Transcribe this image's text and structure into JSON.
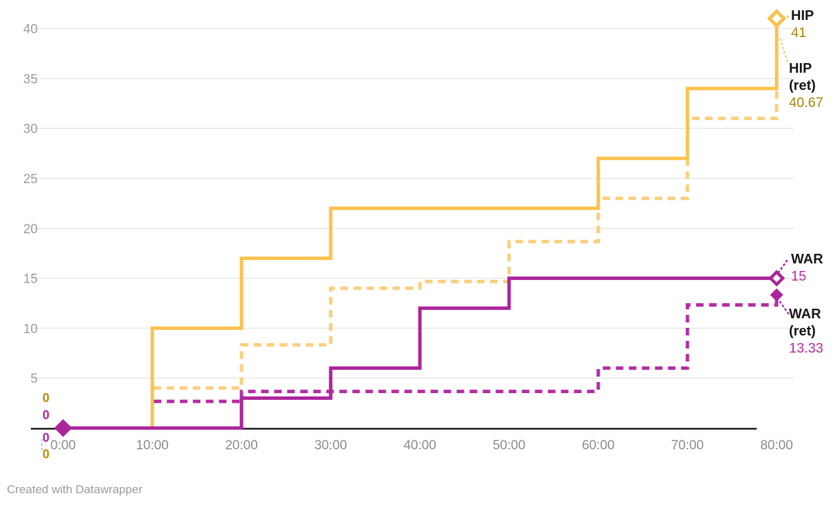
{
  "chart_data": {
    "type": "line",
    "subtype": "step-after",
    "x": [
      "0:00",
      "10:00",
      "20:00",
      "30:00",
      "40:00",
      "50:00",
      "60:00",
      "70:00",
      "80:00"
    ],
    "xlabel": "",
    "ylabel": "",
    "y_ticks": [
      5,
      10,
      15,
      20,
      25,
      30,
      35,
      40
    ],
    "ylim": [
      0,
      41
    ],
    "grid": true,
    "series": [
      {
        "name": "HIP",
        "style": "solid",
        "color": "#FBC24D",
        "values": [
          0,
          10,
          17,
          22,
          22,
          22,
          27,
          34,
          41
        ],
        "end_value": "41",
        "label_lines": [
          "HIP"
        ],
        "start_value": "0"
      },
      {
        "name": "HIP (ret)",
        "style": "dashed",
        "color": "#FCCE7B",
        "values": [
          0,
          4,
          8.33,
          14,
          14.67,
          18.67,
          23,
          31,
          40.67
        ],
        "end_value": "40.67",
        "label_lines": [
          "HIP",
          "(ret)"
        ],
        "start_value": "0"
      },
      {
        "name": "WAR",
        "style": "solid",
        "color": "#AC249B",
        "values": [
          0,
          0,
          3,
          6,
          12,
          15,
          15,
          15,
          15
        ],
        "end_value": "15",
        "label_lines": [
          "WAR"
        ],
        "start_value": "0"
      },
      {
        "name": "WAR (ret)",
        "style": "dashed",
        "color": "#B52CA5",
        "values": [
          0,
          2.67,
          3.67,
          3.67,
          3.67,
          3.67,
          6,
          12.33,
          13.33
        ],
        "end_value": "13.33",
        "label_lines": [
          "WAR",
          "(ret)"
        ],
        "start_value": "0"
      }
    ],
    "colors": {
      "grid": "#E9E9E9",
      "axis": "#171717",
      "y_tick_text": "#9C9C9C",
      "x_tick_text": "#8B8B8B",
      "gold_value_text": "#AA8408",
      "magenta_value_text": "#BB2BA4",
      "label_name_text": "#161616"
    },
    "legend_position": "right-of-line-ends",
    "markers": {
      "start": "filled-diamond-magenta",
      "hip_end": "outlined-diamond-gold",
      "war_end": "outlined-diamond-magenta",
      "war_ret_end": "filled-diamond-magenta"
    }
  },
  "footer": {
    "credit": "Created with Datawrapper"
  }
}
